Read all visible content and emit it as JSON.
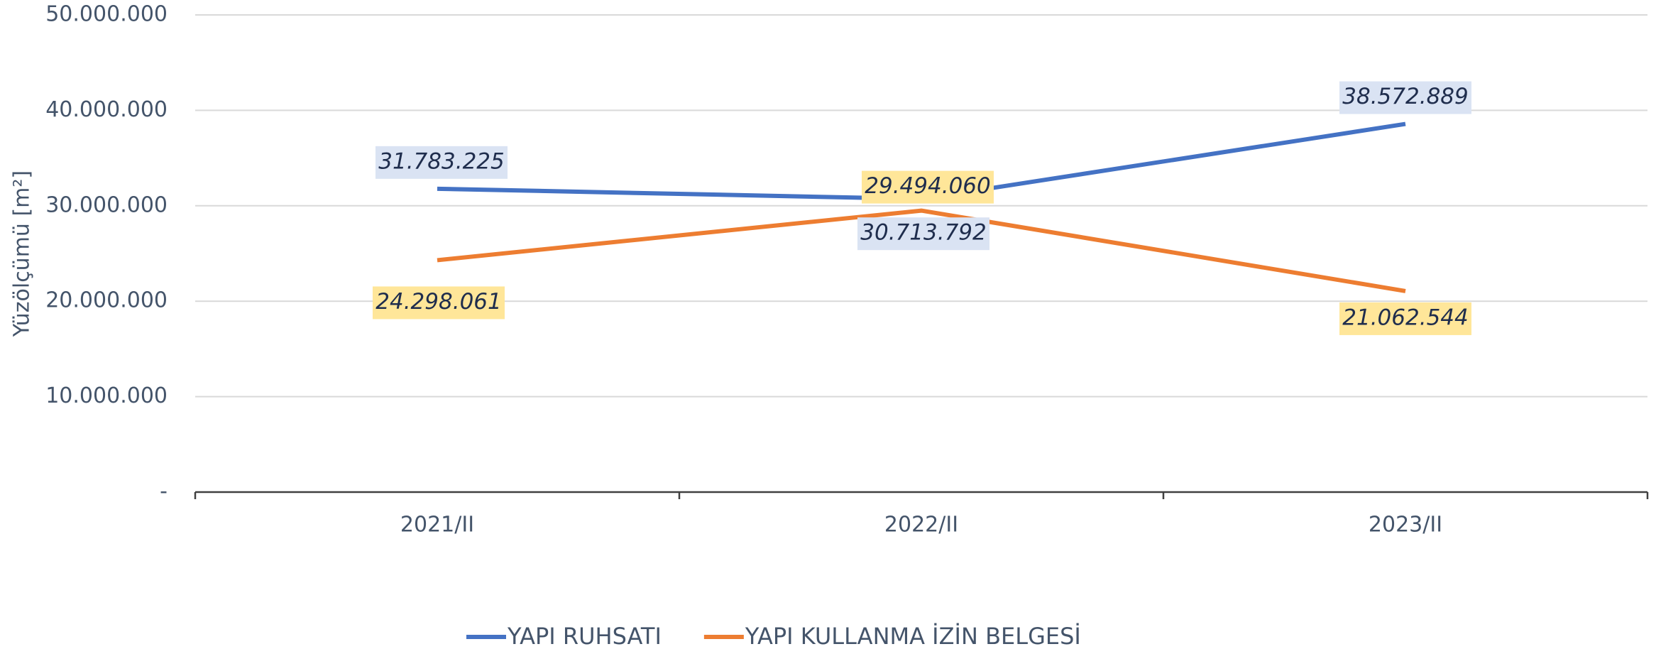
{
  "chart_data": {
    "type": "line",
    "y_label": "Yüzölçümü [m²]",
    "categories": [
      "2021/II",
      "2022/II",
      "2023/II"
    ],
    "series": [
      {
        "name": "YAPI RUHSATI",
        "color": "#4472c4",
        "label_bg": "#dae3f3",
        "values": [
          31783225,
          30713792,
          38572889
        ],
        "value_labels": [
          "31.783.225",
          "30.713.792",
          "38.572.889"
        ]
      },
      {
        "name": "YAPI KULLANMA İZİN BELGESİ",
        "color": "#ed7d31",
        "label_bg": "#ffe699",
        "values": [
          24298061,
          29494060,
          21062544
        ],
        "value_labels": [
          "24.298.061",
          "29.494.060",
          "21.062.544"
        ]
      }
    ],
    "ylim": [
      0,
      50000000
    ],
    "yticks": [
      {
        "value": 0,
        "label": "-"
      },
      {
        "value": 10000000,
        "label": "10.000.000"
      },
      {
        "value": 20000000,
        "label": "20.000.000"
      },
      {
        "value": 30000000,
        "label": "30.000.000"
      },
      {
        "value": 40000000,
        "label": "40.000.000"
      },
      {
        "value": 50000000,
        "label": "50.000.000"
      }
    ],
    "grid": true,
    "legend": "bottom"
  }
}
